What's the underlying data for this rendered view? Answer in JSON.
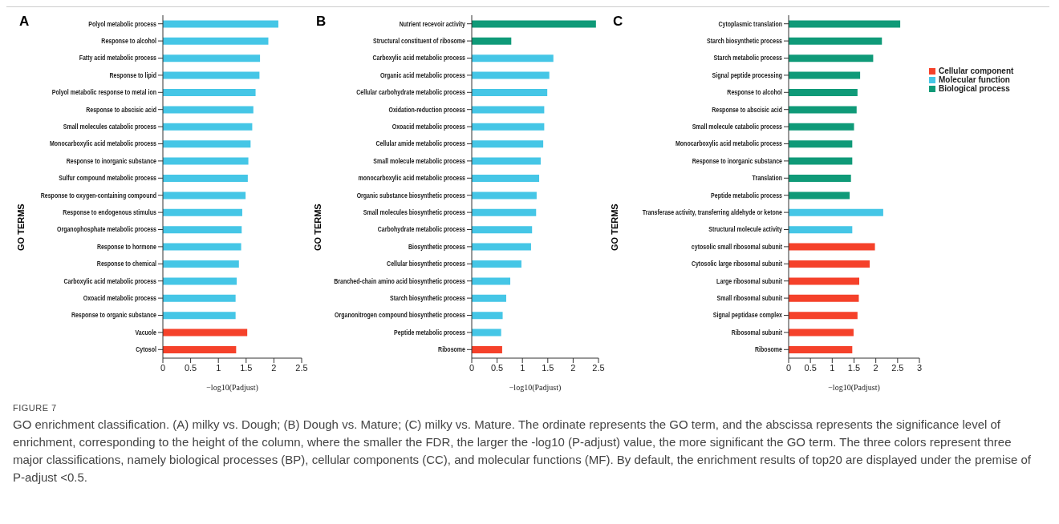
{
  "chart_data": [
    {
      "type": "bar",
      "orientation": "horizontal",
      "title": "A",
      "ylabel": "GO TERMS",
      "xlabel": "−log10(Padjust)",
      "xlim": [
        0,
        2.5
      ],
      "xticks": [
        0,
        0.5,
        1,
        1.5,
        2,
        2.5
      ],
      "categories": [
        "Polyol metabolic process",
        "Response to alcohol",
        "Fatty acid metabolic process",
        "Response to lipid",
        "Polyol metabolic response to metal ion",
        "Response to abscisic acid",
        "Small molecules catabolic process",
        "Monocarboxylic acid metabolic process",
        "Response to inorganic substance",
        "Sulfur compound metabolic process",
        "Response to oxygen-containing compound",
        "Response to endogenous stimulus",
        "Organophosphate metabolic process",
        "Response to hormone",
        "Response to chemical",
        "Carboxylic acid metabolic process",
        "Oxoacid metabolic process",
        "Response to organic substance",
        "Vacuole",
        "Cytosol"
      ],
      "values": [
        2.08,
        1.9,
        1.75,
        1.74,
        1.67,
        1.63,
        1.61,
        1.58,
        1.54,
        1.53,
        1.49,
        1.43,
        1.42,
        1.41,
        1.37,
        1.33,
        1.31,
        1.31,
        1.52,
        1.32
      ],
      "colors": [
        "#45c6e6",
        "#45c6e6",
        "#45c6e6",
        "#45c6e6",
        "#45c6e6",
        "#45c6e6",
        "#45c6e6",
        "#45c6e6",
        "#45c6e6",
        "#45c6e6",
        "#45c6e6",
        "#45c6e6",
        "#45c6e6",
        "#45c6e6",
        "#45c6e6",
        "#45c6e6",
        "#45c6e6",
        "#45c6e6",
        "#f5412a",
        "#f5412a"
      ]
    },
    {
      "type": "bar",
      "orientation": "horizontal",
      "title": "B",
      "ylabel": "GO TERMS",
      "xlabel": "−log10(Padjust)",
      "xlim": [
        0,
        2.5
      ],
      "xticks": [
        0,
        0.5,
        1,
        1.5,
        2,
        2.5
      ],
      "categories": [
        "Nutrient recevoir activity",
        "Structural constituent of ribosome",
        "Carboxylic acid metabolic process",
        "Organic acid metabolic process",
        "Cellular carbohydrate metabolic process",
        "Oxidation-reduction process",
        "Oxoacid metabolic process",
        "Cellular amide metabolic process",
        "Small molecule metabolic process",
        "monocarboxylic acid metabolic process",
        "Organic substance biosynthetic process",
        "Small molecules biosynthetic process",
        "Carbohydrate metabolic process",
        "Biosynthetic process",
        "Cellular biosynthetic process",
        "Branched-chain amino acid biosynthetic process",
        "Starch biosynthetic process",
        "Organonitrogen compound biosynthetic process",
        "Peptide metabolic process",
        "Ribosome"
      ],
      "values": [
        2.45,
        0.78,
        1.61,
        1.53,
        1.49,
        1.43,
        1.43,
        1.41,
        1.36,
        1.33,
        1.28,
        1.27,
        1.19,
        1.17,
        0.98,
        0.76,
        0.68,
        0.61,
        0.58,
        0.6
      ],
      "colors": [
        "#0f9a78",
        "#0f9a78",
        "#45c6e6",
        "#45c6e6",
        "#45c6e6",
        "#45c6e6",
        "#45c6e6",
        "#45c6e6",
        "#45c6e6",
        "#45c6e6",
        "#45c6e6",
        "#45c6e6",
        "#45c6e6",
        "#45c6e6",
        "#45c6e6",
        "#45c6e6",
        "#45c6e6",
        "#45c6e6",
        "#45c6e6",
        "#f5412a"
      ]
    },
    {
      "type": "bar",
      "orientation": "horizontal",
      "stacked": true,
      "legend": "right",
      "title": "C",
      "ylabel": "GO TERMS",
      "xlabel": "−log10(Padjust)",
      "xlim": [
        0,
        3
      ],
      "xticks": [
        0,
        0.5,
        1,
        1.5,
        2,
        2.5,
        3
      ],
      "categories": [
        "Cytoplasmic translation",
        "Starch biosynthetic process",
        "Starch metabolic process",
        "Signal peptide processing",
        "Response to alcohol",
        "Response to abscisic acid",
        "Small molecule catabolic process",
        "Monocarboxylic acid metabolic process",
        "Response to inorganic substance",
        "Translation",
        "Peptide metabolic process",
        "Transferase activity, transferring aldehyde or ketone",
        "Structural molecule activity",
        "cytosolic small ribosomal subunit",
        "Cytosolic large ribosomal subunit",
        "Large ribosomal subunit",
        "Small ribosomal subunit",
        "Signal peptidase complex",
        "Ribosomal subunit",
        "Ribosome"
      ],
      "series": [
        {
          "name": "Cellular component",
          "color": "#f5412a",
          "values": [
            null,
            null,
            null,
            null,
            null,
            null,
            null,
            null,
            null,
            null,
            null,
            null,
            null,
            1.98,
            1.86,
            1.62,
            1.61,
            1.58,
            1.49,
            1.46
          ]
        },
        {
          "name": "Molecular function",
          "color": "#45c6e6",
          "values": [
            null,
            null,
            null,
            null,
            null,
            null,
            null,
            null,
            null,
            null,
            null,
            2.17,
            1.46,
            null,
            null,
            null,
            null,
            null,
            null,
            null
          ]
        },
        {
          "name": "Biological process",
          "color": "#0f9a78",
          "values": [
            2.56,
            2.14,
            1.94,
            1.64,
            1.58,
            1.56,
            1.5,
            1.46,
            1.46,
            1.43,
            1.4,
            null,
            null,
            null,
            null,
            null,
            null,
            null,
            null,
            null
          ]
        }
      ]
    },
    {
      "type": "other",
      "title": "FIGURE 7",
      "annotations": [
        "GO enrichment classification. (A) milky vs. Dough; (B) Dough vs. Mature; (C) milky vs. Mature. The ordinate represents the GO term, and the abscissa represents the significance level of enrichment, corresponding to the height of the column, where the smaller the FDR, the larger the -log10 (P-adjust) value, the more significant the GO term. The three colors represent three major classifications, namely biological processes (BP), cellular components (CC), and molecular functions (MF). By default, the enrichment results of top20 are displayed under the premise of P-adjust <0.5."
      ]
    }
  ]
}
